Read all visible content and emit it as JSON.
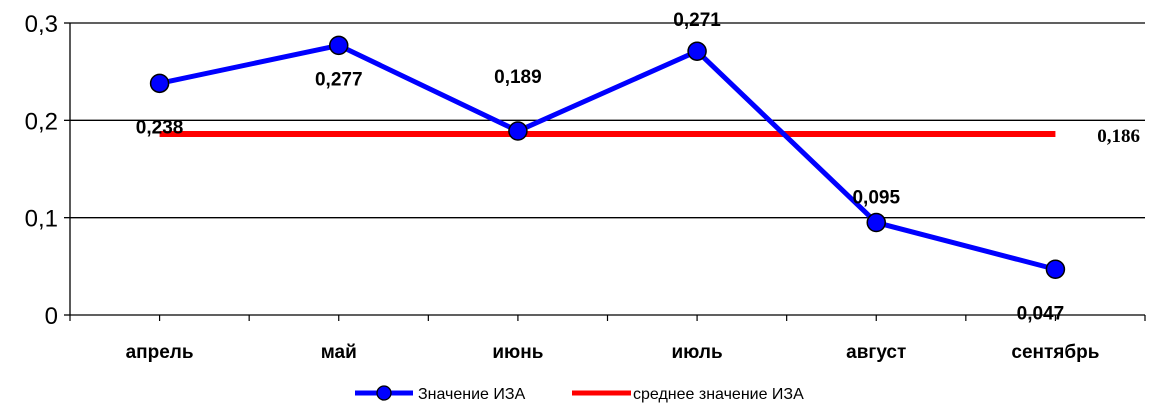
{
  "chart_data": {
    "type": "line",
    "categories": [
      "апрель",
      "май",
      "июнь",
      "июль",
      "август",
      "сентябрь"
    ],
    "ylim": [
      0,
      0.3
    ],
    "yticks": [
      "0",
      "0,1",
      "0,2",
      "0,3"
    ],
    "grid": true,
    "legend_position": "bottom",
    "series": [
      {
        "name": "Значение ИЗА",
        "values": [
          0.238,
          0.277,
          0.189,
          0.271,
          0.095,
          0.047
        ],
        "labels": [
          "0,238",
          "0,277",
          "0,189",
          "0,271",
          "0,095",
          "0,047"
        ],
        "color": "#0000ff",
        "marker": "circle"
      },
      {
        "name": "среднее значение ИЗА",
        "values": [
          0.186,
          0.186,
          0.186,
          0.186,
          0.186,
          0.186
        ],
        "label": "0,186",
        "color": "#ff0000"
      }
    ]
  }
}
